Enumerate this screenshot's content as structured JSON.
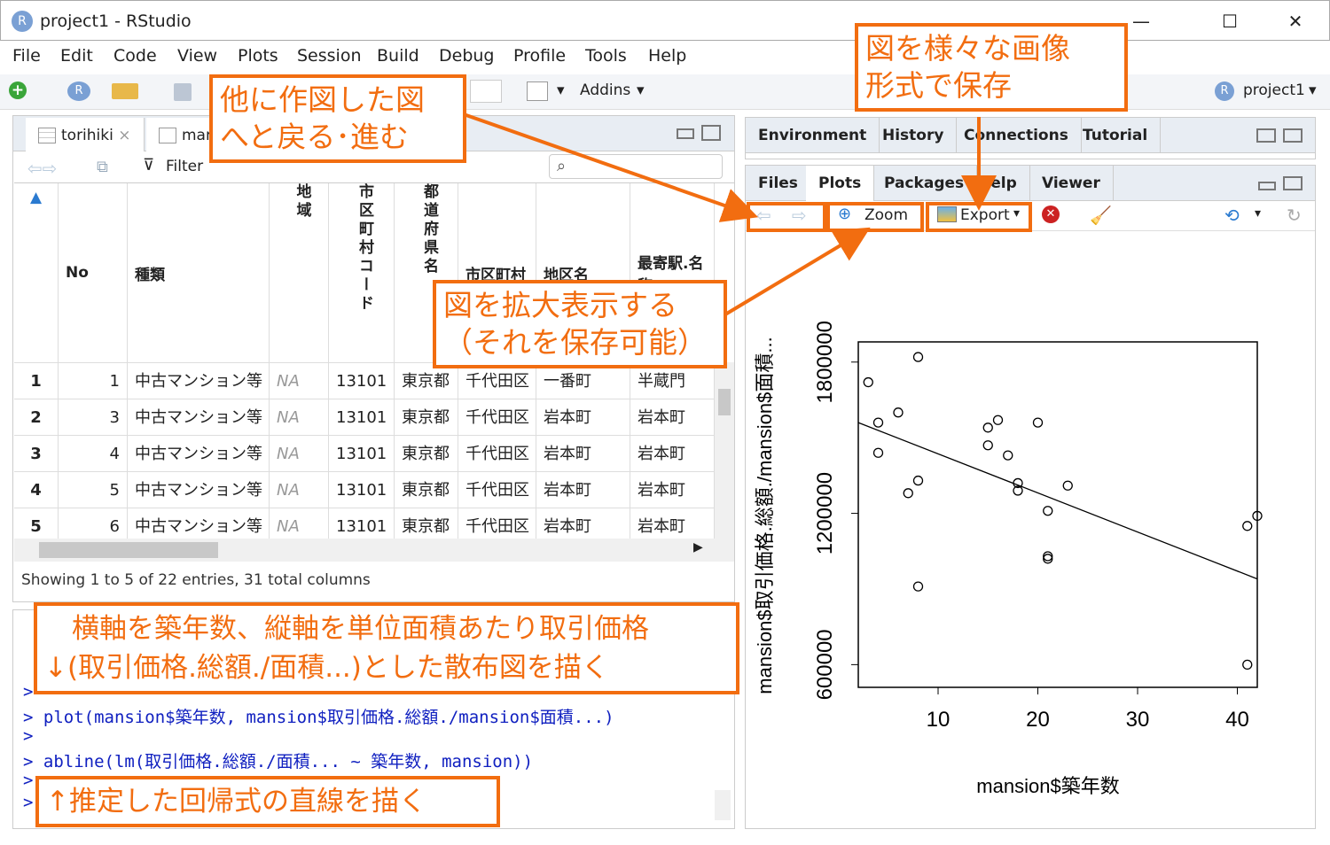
{
  "window": {
    "title": "project1 - RStudio",
    "logo": "R"
  },
  "menu": [
    "File",
    "Edit",
    "Code",
    "View",
    "Plots",
    "Session",
    "Build",
    "Debug",
    "Profile",
    "Tools",
    "Help"
  ],
  "toolbar": {
    "addins": "Addins",
    "project": "project1"
  },
  "source": {
    "tabs": [
      "torihiki",
      "mar"
    ],
    "filter": "Filter",
    "status": "Showing 1 to 5 of 22 entries, 31 total columns"
  },
  "grid": {
    "headers": [
      "No",
      "種類",
      "地域",
      "市区町村コード",
      "都道府県名",
      "市区町村",
      "地区名",
      "最寄駅.名称"
    ],
    "rows": [
      {
        "idx": "1",
        "cells": [
          "1",
          "中古マンション等",
          "NA",
          "13101",
          "東京都",
          "千代田区",
          "一番町",
          "半蔵門"
        ]
      },
      {
        "idx": "2",
        "cells": [
          "3",
          "中古マンション等",
          "NA",
          "13101",
          "東京都",
          "千代田区",
          "岩本町",
          "岩本町"
        ]
      },
      {
        "idx": "3",
        "cells": [
          "4",
          "中古マンション等",
          "NA",
          "13101",
          "東京都",
          "千代田区",
          "岩本町",
          "岩本町"
        ]
      },
      {
        "idx": "4",
        "cells": [
          "5",
          "中古マンション等",
          "NA",
          "13101",
          "東京都",
          "千代田区",
          "岩本町",
          "岩本町"
        ]
      },
      {
        "idx": "5",
        "cells": [
          "6",
          "中古マンション等",
          "NA",
          "13101",
          "東京都",
          "千代田区",
          "岩本町",
          "岩本町"
        ]
      }
    ]
  },
  "console": {
    "lines": [
      ">",
      "> plot(mansion$築年数, mansion$取引価格.総額./mansion$面積...)",
      ">",
      "> abline(lm(取引価格.総額./面積... ~ 築年数, mansion))",
      ">",
      ">"
    ]
  },
  "env_tabs": [
    "Environment",
    "History",
    "Connections",
    "Tutorial"
  ],
  "files_tabs": [
    "Files",
    "Plots",
    "Packages",
    "Help",
    "Viewer"
  ],
  "plot_toolbar": {
    "zoom": "Zoom",
    "export": "Export"
  },
  "callouts": {
    "nav": "他に作図した図\nへと戻る･進む",
    "export": "図を様々な画像\n形式で保存",
    "zoom": "図を拡大表示する\n（それを保存可能）",
    "plot_desc": "　横軸を築年数、縦軸を単位面積あたり取引価格\n↓(取引価格.総額./面積...)とした散布図を描く",
    "abline_desc": "↑推定した回帰式の直線を描く"
  },
  "chart_data": {
    "type": "scatter",
    "xlabel": "mansion$築年数",
    "ylabel": "mansion$取引価格.総額./mansion$面積...",
    "xlim": [
      2,
      42
    ],
    "ylim": [
      510000,
      1880000
    ],
    "xticks": [
      10,
      20,
      30,
      40
    ],
    "yticks": [
      600000,
      1200000,
      1800000
    ],
    "points": [
      [
        3,
        1720000
      ],
      [
        4,
        1560000
      ],
      [
        4,
        1440000
      ],
      [
        6,
        1600000
      ],
      [
        7,
        1280000
      ],
      [
        8,
        1820000
      ],
      [
        8,
        1330000
      ],
      [
        8,
        910000
      ],
      [
        15,
        1540000
      ],
      [
        15,
        1470000
      ],
      [
        16,
        1570000
      ],
      [
        17,
        1430000
      ],
      [
        18,
        1320000
      ],
      [
        18,
        1290000
      ],
      [
        20,
        1560000
      ],
      [
        21,
        1020000
      ],
      [
        21,
        1030000
      ],
      [
        21,
        1210000
      ],
      [
        23,
        1310000
      ],
      [
        41,
        1150000
      ],
      [
        42,
        1190000
      ],
      [
        41,
        600000
      ]
    ],
    "regression": {
      "x0": 2,
      "y0": 1560000,
      "x1": 42,
      "y1": 940000
    }
  }
}
